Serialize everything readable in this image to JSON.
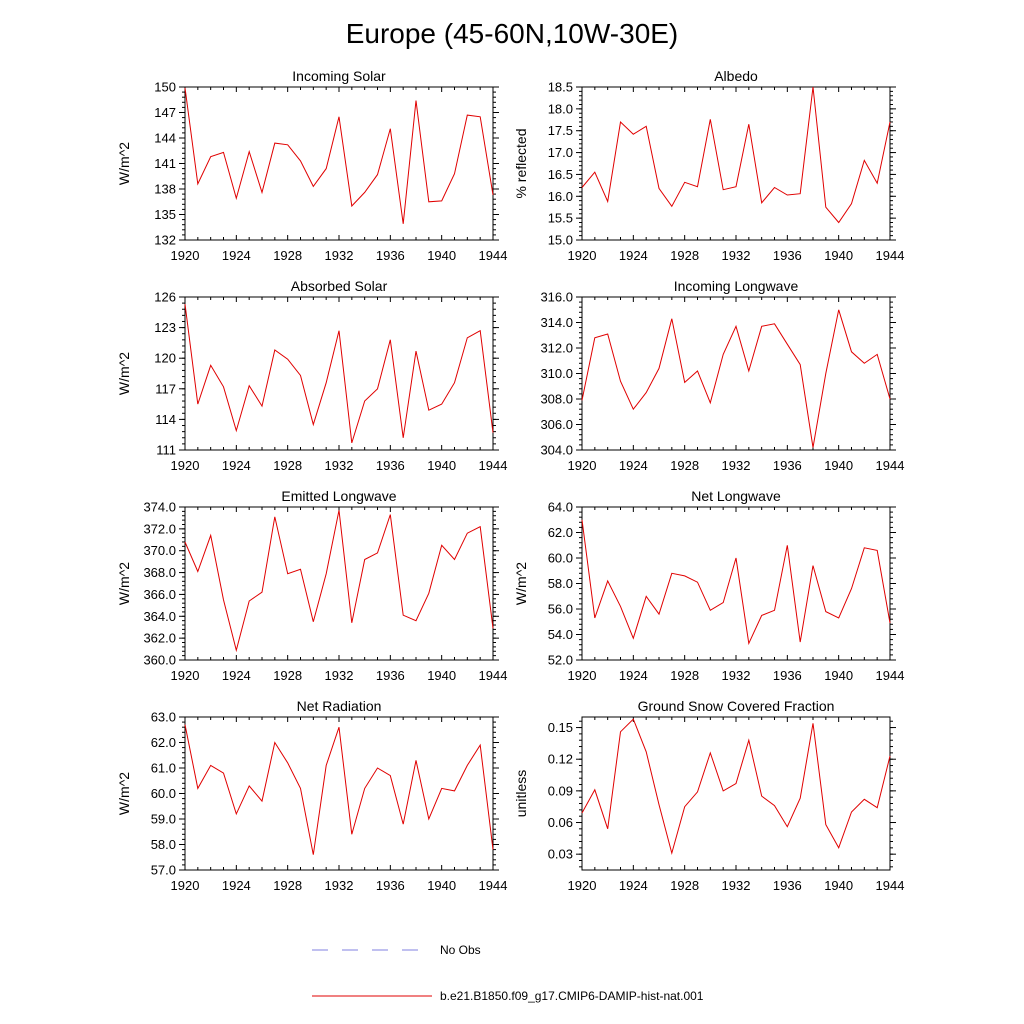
{
  "figure": {
    "title": "Europe (45-60N,10W-30E)",
    "legend": {
      "placement": "bottom-center",
      "entries": [
        {
          "label": "No Obs",
          "color": "#8080e0",
          "style": "dashed"
        },
        {
          "label": "b.e21.B1850.f09_g17.CMIP6-DAMIP-hist-nat.001",
          "color": "#e00000",
          "style": "solid"
        }
      ]
    }
  },
  "chart_data": [
    {
      "type": "line",
      "title": "Incoming Solar",
      "ylabel": "W/m^2",
      "xlim": [
        1920,
        1944
      ],
      "ylim": [
        132,
        150
      ],
      "xticks": [
        "1920",
        "1924",
        "1928",
        "1932",
        "1936",
        "1940",
        "1944"
      ],
      "yticks": [
        "132",
        "135",
        "138",
        "141",
        "144",
        "147",
        "150"
      ],
      "x": [
        1920,
        1921,
        1922,
        1923,
        1924,
        1925,
        1926,
        1927,
        1928,
        1929,
        1930,
        1931,
        1932,
        1933,
        1934,
        1935,
        1936,
        1937,
        1938,
        1939,
        1940,
        1941,
        1942,
        1943,
        1944
      ],
      "series": [
        {
          "color": "#e00000",
          "values": [
            149.9,
            138.6,
            141.8,
            142.3,
            136.9,
            142.4,
            137.6,
            143.4,
            143.2,
            141.3,
            138.3,
            140.4,
            146.5,
            136.0,
            137.6,
            139.7,
            145.1,
            133.9,
            148.4,
            136.5,
            136.6,
            139.8,
            146.7,
            146.5,
            137.3
          ]
        }
      ]
    },
    {
      "type": "line",
      "title": "Albedo",
      "ylabel": "% reflected",
      "xlim": [
        1920,
        1944
      ],
      "ylim": [
        15.0,
        18.5
      ],
      "xticks": [
        "1920",
        "1924",
        "1928",
        "1932",
        "1936",
        "1940",
        "1944"
      ],
      "yticks": [
        "15.0",
        "15.5",
        "16.0",
        "16.5",
        "17.0",
        "17.5",
        "18.0",
        "18.5"
      ],
      "x": [
        1920,
        1921,
        1922,
        1923,
        1924,
        1925,
        1926,
        1927,
        1928,
        1929,
        1930,
        1931,
        1932,
        1933,
        1934,
        1935,
        1936,
        1937,
        1938,
        1939,
        1940,
        1941,
        1942,
        1943,
        1944
      ],
      "series": [
        {
          "color": "#e00000",
          "values": [
            16.2,
            16.55,
            15.88,
            17.7,
            17.42,
            17.6,
            16.18,
            15.77,
            16.32,
            16.22,
            17.76,
            16.15,
            16.22,
            17.65,
            15.85,
            16.2,
            16.03,
            16.06,
            18.5,
            15.75,
            15.4,
            15.83,
            16.82,
            16.3,
            17.7
          ]
        }
      ]
    },
    {
      "type": "line",
      "title": "Absorbed Solar",
      "ylabel": "W/m^2",
      "xlim": [
        1920,
        1944
      ],
      "ylim": [
        111,
        126
      ],
      "xticks": [
        "1920",
        "1924",
        "1928",
        "1932",
        "1936",
        "1940",
        "1944"
      ],
      "yticks": [
        "111",
        "114",
        "117",
        "120",
        "123",
        "126"
      ],
      "x": [
        1920,
        1921,
        1922,
        1923,
        1924,
        1925,
        1926,
        1927,
        1928,
        1929,
        1930,
        1931,
        1932,
        1933,
        1934,
        1935,
        1936,
        1937,
        1938,
        1939,
        1940,
        1941,
        1942,
        1943,
        1944
      ],
      "series": [
        {
          "color": "#e00000",
          "values": [
            125.3,
            115.5,
            119.3,
            117.2,
            112.9,
            117.3,
            115.3,
            120.8,
            119.9,
            118.3,
            113.5,
            117.6,
            122.7,
            111.7,
            115.8,
            117.0,
            121.8,
            112.2,
            120.7,
            114.9,
            115.5,
            117.6,
            122.0,
            122.7,
            112.7
          ]
        }
      ]
    },
    {
      "type": "line",
      "title": "Incoming Longwave",
      "ylabel": "",
      "xlim": [
        1920,
        1944
      ],
      "ylim": [
        304.0,
        316.0
      ],
      "xticks": [
        "1920",
        "1924",
        "1928",
        "1932",
        "1936",
        "1940",
        "1944"
      ],
      "yticks": [
        "304.0",
        "306.0",
        "308.0",
        "310.0",
        "312.0",
        "314.0",
        "316.0"
      ],
      "x": [
        1920,
        1921,
        1922,
        1923,
        1924,
        1925,
        1926,
        1927,
        1928,
        1929,
        1930,
        1931,
        1932,
        1933,
        1934,
        1935,
        1936,
        1937,
        1938,
        1939,
        1940,
        1941,
        1942,
        1943,
        1944
      ],
      "series": [
        {
          "color": "#e00000",
          "values": [
            307.9,
            312.8,
            313.1,
            309.4,
            307.2,
            308.5,
            310.4,
            314.3,
            309.3,
            310.2,
            307.7,
            311.5,
            313.7,
            310.2,
            313.7,
            313.9,
            312.3,
            310.7,
            304.2,
            310.0,
            315.0,
            311.7,
            310.8,
            311.5,
            308.0
          ]
        }
      ]
    },
    {
      "type": "line",
      "title": "Emitted Longwave",
      "ylabel": "W/m^2",
      "xlim": [
        1920,
        1944
      ],
      "ylim": [
        360.0,
        374.0
      ],
      "xticks": [
        "1920",
        "1924",
        "1928",
        "1932",
        "1936",
        "1940",
        "1944"
      ],
      "yticks": [
        "360.0",
        "362.0",
        "364.0",
        "366.0",
        "368.0",
        "370.0",
        "372.0",
        "374.0"
      ],
      "x": [
        1920,
        1921,
        1922,
        1923,
        1924,
        1925,
        1926,
        1927,
        1928,
        1929,
        1930,
        1931,
        1932,
        1933,
        1934,
        1935,
        1936,
        1937,
        1938,
        1939,
        1940,
        1941,
        1942,
        1943,
        1944
      ],
      "series": [
        {
          "color": "#e00000",
          "values": [
            370.8,
            368.1,
            371.4,
            365.5,
            360.9,
            365.4,
            366.2,
            373.1,
            367.9,
            368.3,
            363.5,
            367.9,
            373.7,
            363.4,
            369.2,
            369.8,
            373.3,
            364.1,
            363.6,
            366.1,
            370.5,
            369.2,
            371.6,
            372.2,
            362.9
          ]
        }
      ]
    },
    {
      "type": "line",
      "title": "Net Longwave",
      "ylabel": "W/m^2",
      "xlim": [
        1920,
        1944
      ],
      "ylim": [
        52.0,
        64.0
      ],
      "xticks": [
        "1920",
        "1924",
        "1928",
        "1932",
        "1936",
        "1940",
        "1944"
      ],
      "yticks": [
        "52.0",
        "54.0",
        "56.0",
        "58.0",
        "60.0",
        "62.0",
        "64.0"
      ],
      "x": [
        1920,
        1921,
        1922,
        1923,
        1924,
        1925,
        1926,
        1927,
        1928,
        1929,
        1930,
        1931,
        1932,
        1933,
        1934,
        1935,
        1936,
        1937,
        1938,
        1939,
        1940,
        1941,
        1942,
        1943,
        1944
      ],
      "series": [
        {
          "color": "#e00000",
          "values": [
            63.0,
            55.3,
            58.2,
            56.2,
            53.7,
            57.0,
            55.6,
            58.8,
            58.6,
            58.1,
            55.9,
            56.5,
            60.0,
            53.3,
            55.5,
            55.9,
            61.0,
            53.4,
            59.4,
            55.8,
            55.3,
            57.6,
            60.8,
            60.6,
            54.9
          ]
        }
      ]
    },
    {
      "type": "line",
      "title": "Net Radiation",
      "ylabel": "W/m^2",
      "xlim": [
        1920,
        1944
      ],
      "ylim": [
        57.0,
        63.0
      ],
      "xticks": [
        "1920",
        "1924",
        "1928",
        "1932",
        "1936",
        "1940",
        "1944"
      ],
      "yticks": [
        "57.0",
        "58.0",
        "59.0",
        "60.0",
        "61.0",
        "62.0",
        "63.0"
      ],
      "x": [
        1920,
        1921,
        1922,
        1923,
        1924,
        1925,
        1926,
        1927,
        1928,
        1929,
        1930,
        1931,
        1932,
        1933,
        1934,
        1935,
        1936,
        1937,
        1938,
        1939,
        1940,
        1941,
        1942,
        1943,
        1944
      ],
      "series": [
        {
          "color": "#e00000",
          "values": [
            62.7,
            60.2,
            61.1,
            60.8,
            59.2,
            60.3,
            59.7,
            62.0,
            61.2,
            60.2,
            57.6,
            61.1,
            62.6,
            58.4,
            60.2,
            61.0,
            60.7,
            58.8,
            61.3,
            59.0,
            60.2,
            60.1,
            61.1,
            61.9,
            57.8
          ]
        }
      ]
    },
    {
      "type": "line",
      "title": "Ground Snow Covered Fraction",
      "ylabel": "unitless",
      "xlim": [
        1920,
        1944
      ],
      "ylim": [
        0.015,
        0.16
      ],
      "xticks": [
        "1920",
        "1924",
        "1928",
        "1932",
        "1936",
        "1940",
        "1944"
      ],
      "yticks": [
        "0.03",
        "0.06",
        "0.09",
        "0.12",
        "0.15"
      ],
      "ytick_values": [
        0.03,
        0.06,
        0.09,
        0.12,
        0.15
      ],
      "x": [
        1920,
        1921,
        1922,
        1923,
        1924,
        1925,
        1926,
        1927,
        1928,
        1929,
        1930,
        1931,
        1932,
        1933,
        1934,
        1935,
        1936,
        1937,
        1938,
        1939,
        1940,
        1941,
        1942,
        1943,
        1944
      ],
      "series": [
        {
          "color": "#e00000",
          "values": [
            0.069,
            0.091,
            0.054,
            0.146,
            0.158,
            0.127,
            0.077,
            0.031,
            0.075,
            0.089,
            0.126,
            0.09,
            0.097,
            0.138,
            0.085,
            0.076,
            0.056,
            0.083,
            0.154,
            0.058,
            0.036,
            0.07,
            0.082,
            0.074,
            0.123
          ]
        }
      ]
    }
  ]
}
